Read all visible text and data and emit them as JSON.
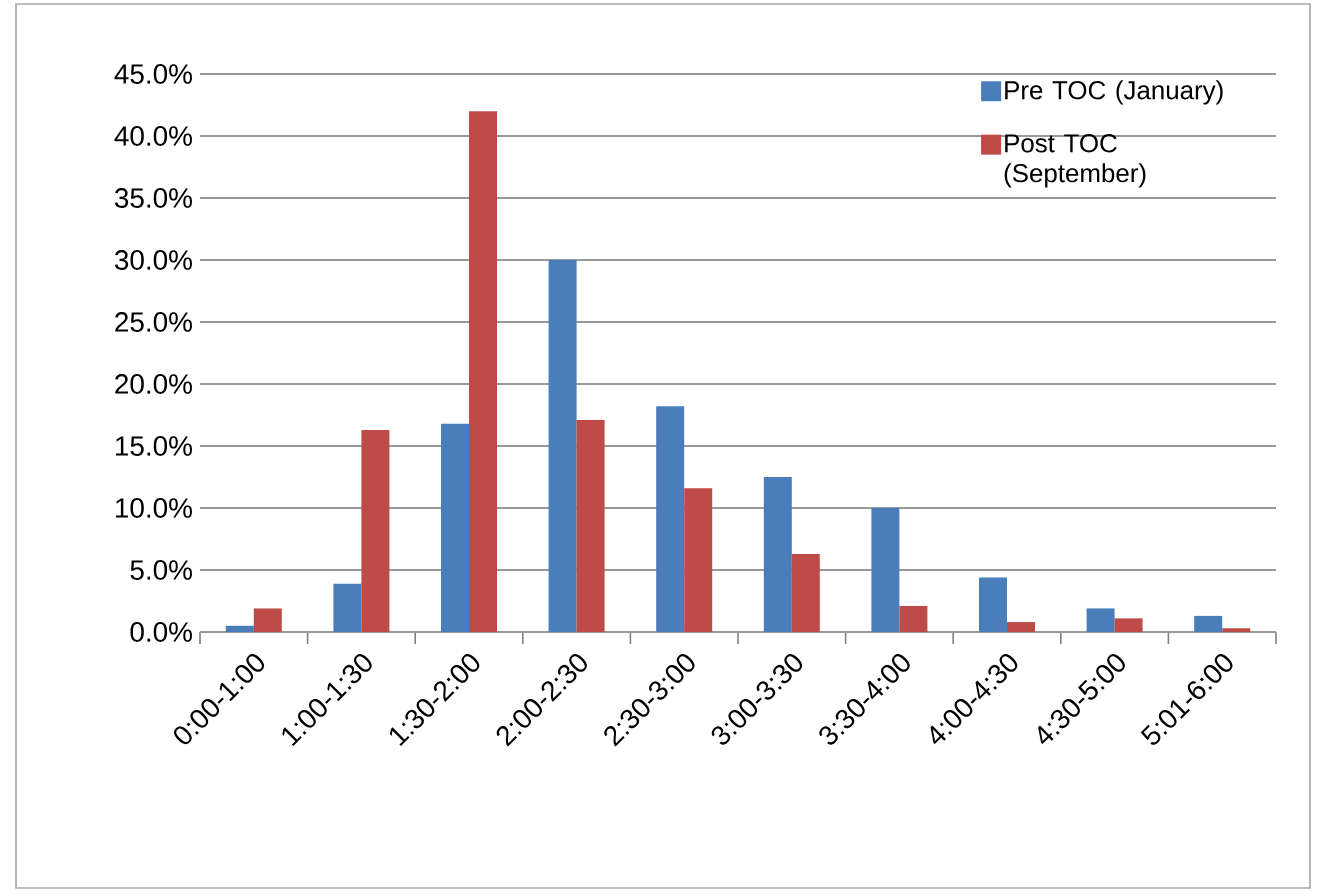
{
  "chart_data": {
    "type": "bar",
    "categories": [
      "0:00-1:00",
      "1:00-1:30",
      "1:30-2:00",
      "2:00-2:30",
      "2:30-3:00",
      "3:00-3:30",
      "3:30-4:00",
      "4:00-4:30",
      "4:30-5:00",
      "5:01-6:00"
    ],
    "series": [
      {
        "name": "Pre TOC (January)",
        "color": "#4a7ebb",
        "values": [
          0.5,
          3.9,
          16.8,
          30.0,
          18.2,
          12.5,
          10.0,
          4.4,
          1.9,
          1.3
        ]
      },
      {
        "name": "Post TOC (September)",
        "color": "#be4b48",
        "values": [
          1.9,
          16.3,
          42.0,
          17.1,
          11.6,
          6.3,
          2.1,
          0.8,
          1.1,
          0.3
        ]
      }
    ],
    "ylim": [
      0,
      45
    ],
    "yticks": [
      {
        "value": 0,
        "label": "0.0%"
      },
      {
        "value": 5,
        "label": "5.0%"
      },
      {
        "value": 10,
        "label": "10.0%"
      },
      {
        "value": 15,
        "label": "15.0%"
      },
      {
        "value": 20,
        "label": "20.0%"
      },
      {
        "value": 25,
        "label": "25.0%"
      },
      {
        "value": 30,
        "label": "30.0%"
      },
      {
        "value": 35,
        "label": "35.0%"
      },
      {
        "value": 40,
        "label": "40.0%"
      },
      {
        "value": 45,
        "label": "45.0%"
      }
    ],
    "grid": "y",
    "legend": "top right"
  }
}
